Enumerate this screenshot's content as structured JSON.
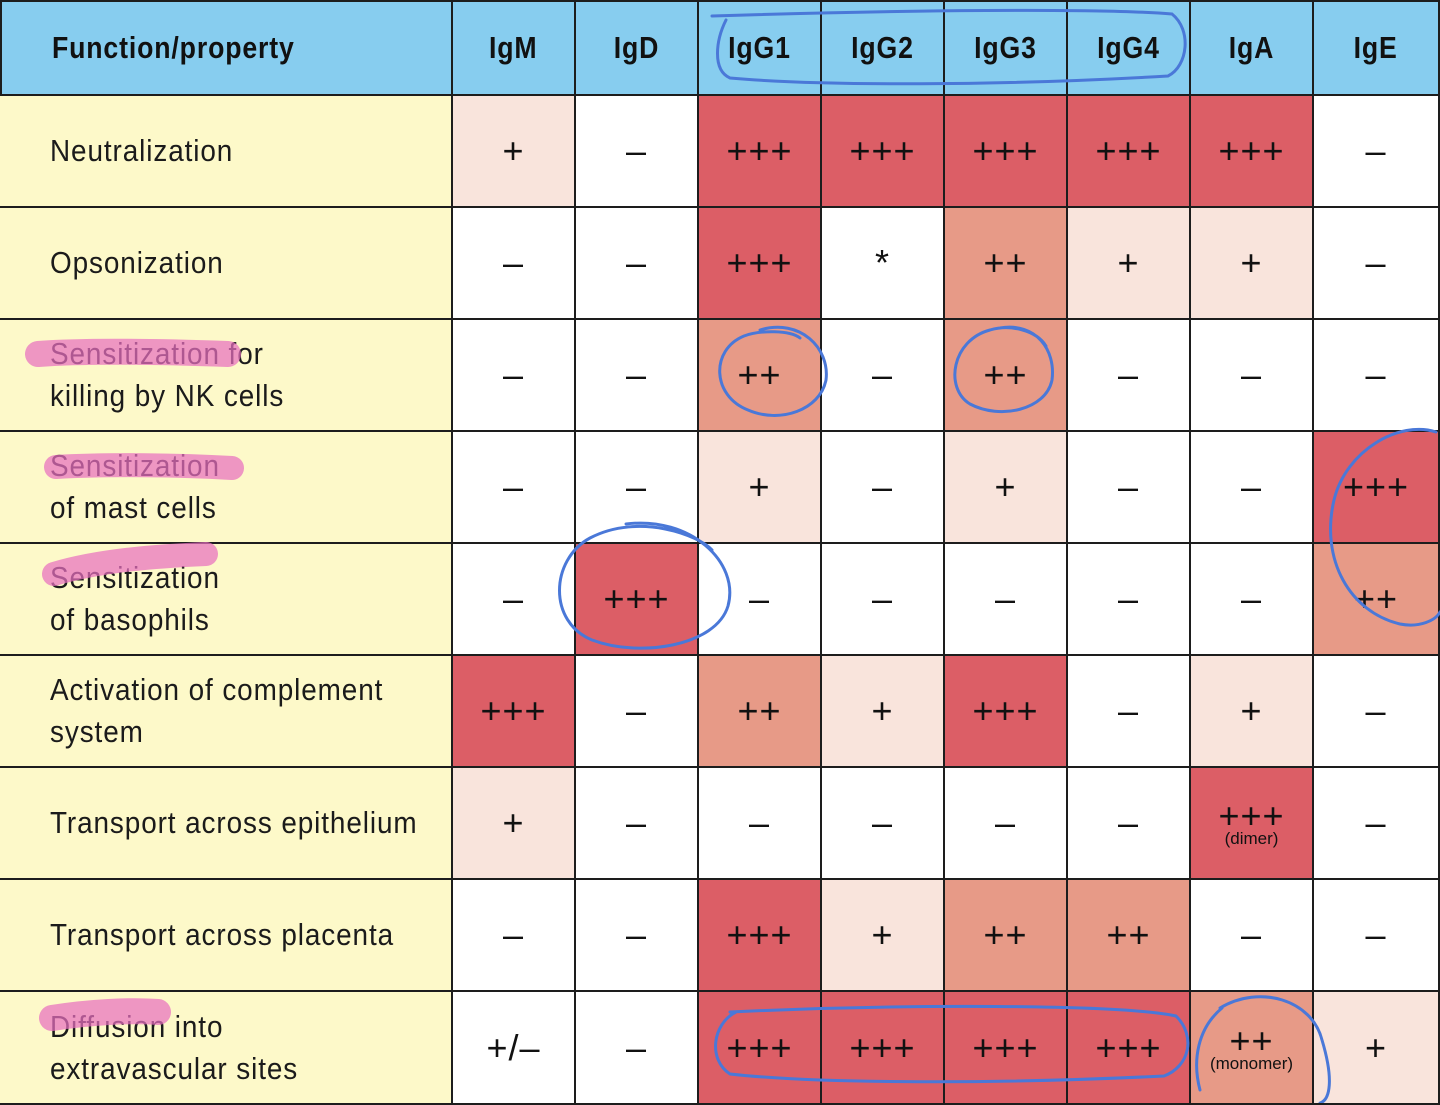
{
  "table": {
    "header": [
      "Function/property",
      "IgM",
      "IgD",
      "IgG1",
      "IgG2",
      "IgG3",
      "IgG4",
      "IgA",
      "IgE"
    ],
    "rows": [
      {
        "function": [
          "Neutralization"
        ],
        "cells": [
          {
            "v": "+",
            "level": 1
          },
          {
            "v": "–",
            "level": 0
          },
          {
            "v": "+++",
            "level": 3
          },
          {
            "v": "+++",
            "level": 3
          },
          {
            "v": "+++",
            "level": 3
          },
          {
            "v": "+++",
            "level": 3
          },
          {
            "v": "+++",
            "level": 3
          },
          {
            "v": "–",
            "level": 0
          }
        ]
      },
      {
        "function": [
          "Opsonization"
        ],
        "cells": [
          {
            "v": "–",
            "level": 0
          },
          {
            "v": "–",
            "level": 0
          },
          {
            "v": "+++",
            "level": 3
          },
          {
            "v": "*",
            "level": 0
          },
          {
            "v": "++",
            "level": 2
          },
          {
            "v": "+",
            "level": 1
          },
          {
            "v": "+",
            "level": 1
          },
          {
            "v": "–",
            "level": 0
          }
        ]
      },
      {
        "function": [
          "Sensitization for",
          "killing by NK cells"
        ],
        "cells": [
          {
            "v": "–",
            "level": 0
          },
          {
            "v": "–",
            "level": 0
          },
          {
            "v": "++",
            "level": 2
          },
          {
            "v": "–",
            "level": 0
          },
          {
            "v": "++",
            "level": 2
          },
          {
            "v": "–",
            "level": 0
          },
          {
            "v": "–",
            "level": 0
          },
          {
            "v": "–",
            "level": 0
          }
        ]
      },
      {
        "function": [
          "Sensitization",
          "of mast cells"
        ],
        "cells": [
          {
            "v": "–",
            "level": 0
          },
          {
            "v": "–",
            "level": 0
          },
          {
            "v": "+",
            "level": 1
          },
          {
            "v": "–",
            "level": 0
          },
          {
            "v": "+",
            "level": 1
          },
          {
            "v": "–",
            "level": 0
          },
          {
            "v": "–",
            "level": 0
          },
          {
            "v": "+++",
            "level": 3
          }
        ]
      },
      {
        "function": [
          "Sensitization",
          "of basophils"
        ],
        "cells": [
          {
            "v": "–",
            "level": 0
          },
          {
            "v": "+++",
            "level": 3
          },
          {
            "v": "–",
            "level": 0
          },
          {
            "v": "–",
            "level": 0
          },
          {
            "v": "–",
            "level": 0
          },
          {
            "v": "–",
            "level": 0
          },
          {
            "v": "–",
            "level": 0
          },
          {
            "v": "++",
            "level": 2
          }
        ]
      },
      {
        "function": [
          "Activation of complement",
          "system"
        ],
        "cells": [
          {
            "v": "+++",
            "level": 3
          },
          {
            "v": "–",
            "level": 0
          },
          {
            "v": "++",
            "level": 2
          },
          {
            "v": "+",
            "level": 1
          },
          {
            "v": "+++",
            "level": 3
          },
          {
            "v": "–",
            "level": 0
          },
          {
            "v": "+",
            "level": 1
          },
          {
            "v": "–",
            "level": 0
          }
        ]
      },
      {
        "function": [
          "Transport across epithelium"
        ],
        "cells": [
          {
            "v": "+",
            "level": 1
          },
          {
            "v": "–",
            "level": 0
          },
          {
            "v": "–",
            "level": 0
          },
          {
            "v": "–",
            "level": 0
          },
          {
            "v": "–",
            "level": 0
          },
          {
            "v": "–",
            "level": 0
          },
          {
            "v": "+++",
            "level": 3,
            "note": "(dimer)"
          },
          {
            "v": "–",
            "level": 0
          }
        ]
      },
      {
        "function": [
          "Transport across placenta"
        ],
        "cells": [
          {
            "v": "–",
            "level": 0
          },
          {
            "v": "–",
            "level": 0
          },
          {
            "v": "+++",
            "level": 3
          },
          {
            "v": "+",
            "level": 1
          },
          {
            "v": "++",
            "level": 2
          },
          {
            "v": "++",
            "level": 2
          },
          {
            "v": "–",
            "level": 0
          },
          {
            "v": "–",
            "level": 0
          }
        ]
      },
      {
        "function": [
          "Diffusion into",
          "extravascular sites"
        ],
        "cells": [
          {
            "v": "+/–",
            "level": 0
          },
          {
            "v": "–",
            "level": 0
          },
          {
            "v": "+++",
            "level": 3
          },
          {
            "v": "+++",
            "level": 3
          },
          {
            "v": "+++",
            "level": 3
          },
          {
            "v": "+++",
            "level": 3
          },
          {
            "v": "++",
            "level": 2,
            "note": "(monomer)"
          },
          {
            "v": "+",
            "level": 1
          }
        ]
      }
    ]
  },
  "colors": {
    "header_bg": "#87cdef",
    "function_bg": "#fdf9c9",
    "level_0": "#ffffff",
    "level_1": "#f9e4dc",
    "level_2": "#e79a87",
    "level_3": "#dc5e66",
    "pen_blue": "#4a78d8",
    "highlighter_pink": "#e86fbf"
  }
}
